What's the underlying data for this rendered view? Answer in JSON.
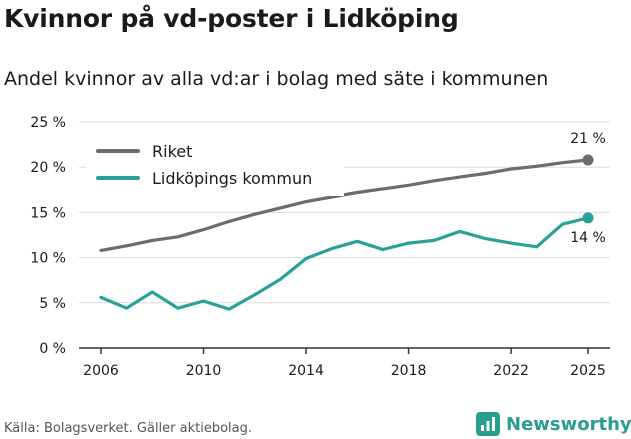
{
  "title": "Kvinnor på vd-poster i Lidköping",
  "subtitle": "Andel kvinnor av alla vd:ar i bolag med säte i kommunen",
  "source": "Källa: Bolagsverket. Gäller aktiebolag.",
  "brand": {
    "name": "Newsworthy",
    "icon": "newsworthy-logo-icon",
    "color": "#2a9d8f"
  },
  "chart_data": {
    "type": "line",
    "title": "Kvinnor på vd-poster i Lidköping",
    "subtitle": "Andel kvinnor av alla vd:ar i bolag med säte i kommunen",
    "xlabel": "",
    "ylabel": "",
    "xlim": [
      2006,
      2025
    ],
    "ylim": [
      0,
      25
    ],
    "x_ticks": [
      2006,
      2010,
      2014,
      2018,
      2022,
      2025
    ],
    "x_tick_labels": [
      "2006",
      "2010",
      "2014",
      "2018",
      "2022",
      "2025"
    ],
    "y_ticks": [
      0,
      5,
      10,
      15,
      20,
      25
    ],
    "y_tick_labels": [
      "0 %",
      "5 %",
      "10 %",
      "15 %",
      "20 %",
      "25 %"
    ],
    "grid": "horizontal",
    "legend_position": "top-left",
    "x": [
      2006,
      2007,
      2008,
      2009,
      2010,
      2011,
      2012,
      2013,
      2014,
      2015,
      2016,
      2017,
      2018,
      2019,
      2020,
      2021,
      2022,
      2023,
      2024,
      2025
    ],
    "series": [
      {
        "name": "Riket",
        "color": "#6b6b70",
        "values": [
          10.8,
          11.3,
          11.9,
          12.3,
          13.1,
          14.0,
          14.8,
          15.5,
          16.2,
          16.7,
          17.2,
          17.6,
          18.0,
          18.5,
          18.9,
          19.3,
          19.8,
          20.1,
          20.5,
          20.8
        ],
        "end_label": "21 %"
      },
      {
        "name": "Lidköpings kommun",
        "color": "#2aa198",
        "values": [
          5.6,
          4.4,
          6.2,
          4.4,
          5.2,
          4.3,
          5.9,
          7.6,
          9.9,
          11.0,
          11.8,
          10.9,
          11.6,
          11.9,
          12.9,
          12.1,
          11.6,
          11.2,
          13.7,
          14.4
        ],
        "end_label": "14 %"
      }
    ]
  }
}
